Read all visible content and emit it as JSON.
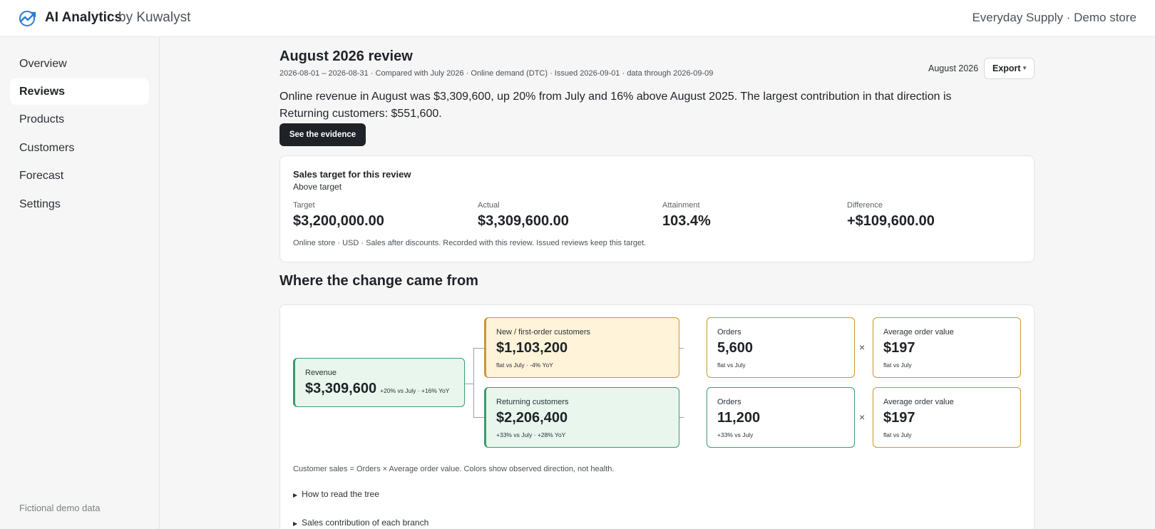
{
  "header": {
    "brand": "AI Analytics",
    "brand_by": "by Kuwalyst",
    "store": "Everyday Supply · Demo store"
  },
  "sidebar": {
    "items": [
      {
        "label": "Overview"
      },
      {
        "label": "Reviews"
      },
      {
        "label": "Products"
      },
      {
        "label": "Customers"
      },
      {
        "label": "Forecast"
      },
      {
        "label": "Settings"
      }
    ],
    "footer": "Fictional demo data"
  },
  "review": {
    "title": "August 2026 review",
    "subtitle": "2026-08-01 – 2026-08-31 · Compared with July 2026 · Online demand (DTC) · Issued 2026-09-01 · data through 2026-09-09",
    "period": "August 2026",
    "export_label": "Export",
    "headline": "Online revenue in August was $3,309,600, up 20% from July and 16% above August 2025. The largest contribution in that direction is Returning customers: $551,600.",
    "evidence_label": "See the evidence"
  },
  "target": {
    "title": "Sales target for this review",
    "status": "Above target",
    "metrics": [
      {
        "label": "Target",
        "value": "$3,200,000.00"
      },
      {
        "label": "Actual",
        "value": "$3,309,600.00"
      },
      {
        "label": "Attainment",
        "value": "103.4%"
      },
      {
        "label": "Difference",
        "value": "+$109,600.00"
      }
    ],
    "note": "Online store · USD · Sales after discounts. Recorded with this review. Issued reviews keep this target."
  },
  "tree": {
    "section_title": "Where the change came from",
    "revenue": {
      "label": "Revenue",
      "value": "$3,309,600",
      "change": "+20% vs July · +16% YoY"
    },
    "new": {
      "label": "New / first-order customers",
      "value": "$1,103,200",
      "change": "flat vs July · -4% YoY"
    },
    "returning": {
      "label": "Returning customers",
      "value": "$2,206,400",
      "change": "+33% vs July · +28% YoY"
    },
    "new_orders": {
      "label": "Orders",
      "value": "5,600",
      "change": "flat vs July"
    },
    "new_aov": {
      "label": "Average order value",
      "value": "$197",
      "change": "flat vs July"
    },
    "ret_orders": {
      "label": "Orders",
      "value": "11,200",
      "change": "+33% vs July"
    },
    "ret_aov": {
      "label": "Average order value",
      "value": "$197",
      "change": "flat vs July"
    },
    "times": "×",
    "note": "Customer sales = Orders × Average order value. Colors show observed direction, not health.",
    "details": [
      "How to read the tree",
      "Sales contribution of each branch"
    ]
  },
  "colors": {
    "green_fill": "#e8f6ee",
    "green_border": "#3d9a6c",
    "amber_fill": "#fff3d9",
    "amber_border": "#c9982e",
    "primary_button": "#1f2328",
    "logo": "#2b7bd6"
  },
  "icons": {
    "logo": "chart-logo-icon",
    "caret": "caret-down-icon",
    "disclosure": "triangle-right-icon"
  }
}
